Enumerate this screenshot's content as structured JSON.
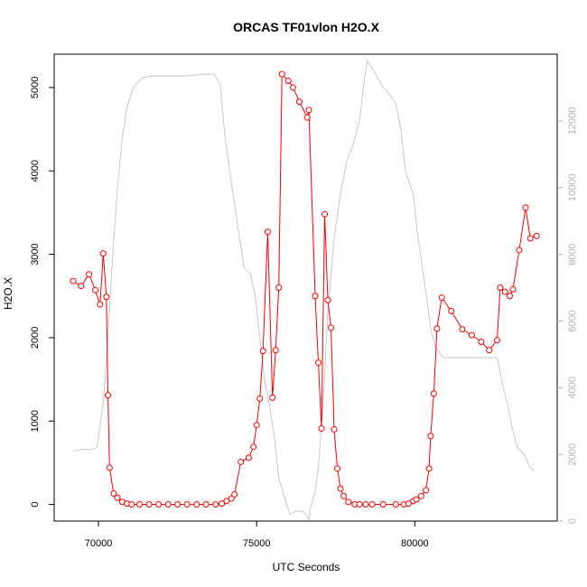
{
  "chart_data": {
    "type": "line",
    "title": "ORCAS TF01vlon H2O.X",
    "xlabel": "UTC Seconds",
    "ylabel": "H2O.X",
    "xlim": [
      68600,
      84500
    ],
    "ylim": [
      -200,
      5400
    ],
    "y2lim": [
      0,
      14000
    ],
    "x_ticks": [
      70000,
      75000,
      80000
    ],
    "y_ticks": [
      0,
      1000,
      2000,
      3000,
      4000,
      5000
    ],
    "y2_ticks": [
      0,
      2000,
      4000,
      6000,
      8000,
      10000,
      12000
    ],
    "grid": false,
    "colors": {
      "h2o": "#ff0000",
      "secondary": "#c8c8c8"
    },
    "series": [
      {
        "axis": "left",
        "marker": "circle",
        "points": [
          [
            69200,
            2680
          ],
          [
            69450,
            2620
          ],
          [
            69700,
            2760
          ],
          [
            69900,
            2570
          ],
          [
            70050,
            2400
          ],
          [
            70150,
            3010
          ],
          [
            70250,
            2490
          ],
          [
            70300,
            1310
          ],
          [
            70350,
            440
          ],
          [
            70480,
            130
          ],
          [
            70600,
            80
          ],
          [
            70750,
            30
          ],
          [
            70900,
            10
          ],
          [
            71050,
            0
          ],
          [
            71300,
            0
          ],
          [
            71600,
            0
          ],
          [
            71900,
            0
          ],
          [
            72200,
            0
          ],
          [
            72500,
            0
          ],
          [
            72800,
            0
          ],
          [
            73100,
            0
          ],
          [
            73400,
            0
          ],
          [
            73700,
            0
          ],
          [
            73900,
            10
          ],
          [
            74050,
            40
          ],
          [
            74200,
            70
          ],
          [
            74300,
            120
          ],
          [
            74500,
            510
          ],
          [
            74750,
            560
          ],
          [
            74900,
            690
          ],
          [
            75000,
            950
          ],
          [
            75100,
            1270
          ],
          [
            75200,
            1840
          ],
          [
            75350,
            3270
          ],
          [
            75500,
            1280
          ],
          [
            75600,
            1850
          ],
          [
            75700,
            2600
          ],
          [
            75800,
            5160
          ],
          [
            76000,
            5080
          ],
          [
            76150,
            5000
          ],
          [
            76350,
            4830
          ],
          [
            76600,
            4640
          ],
          [
            76650,
            4730
          ],
          [
            76850,
            2500
          ],
          [
            76950,
            1700
          ],
          [
            77050,
            910
          ],
          [
            77150,
            3480
          ],
          [
            77250,
            2450
          ],
          [
            77350,
            2120
          ],
          [
            77450,
            900
          ],
          [
            77550,
            430
          ],
          [
            77650,
            190
          ],
          [
            77750,
            100
          ],
          [
            77900,
            30
          ],
          [
            78100,
            0
          ],
          [
            78250,
            0
          ],
          [
            78450,
            0
          ],
          [
            78650,
            0
          ],
          [
            79000,
            0
          ],
          [
            79400,
            0
          ],
          [
            79650,
            0
          ],
          [
            79800,
            10
          ],
          [
            79950,
            40
          ],
          [
            80050,
            60
          ],
          [
            80200,
            100
          ],
          [
            80350,
            170
          ],
          [
            80450,
            430
          ],
          [
            80500,
            820
          ],
          [
            80600,
            1330
          ],
          [
            80700,
            2110
          ],
          [
            80850,
            2480
          ],
          [
            81150,
            2320
          ],
          [
            81500,
            2100
          ],
          [
            81800,
            2030
          ],
          [
            82100,
            1950
          ],
          [
            82350,
            1850
          ],
          [
            82600,
            1970
          ],
          [
            82700,
            2600
          ],
          [
            82850,
            2550
          ],
          [
            83000,
            2500
          ],
          [
            83100,
            2580
          ],
          [
            83300,
            3050
          ],
          [
            83500,
            3560
          ],
          [
            83650,
            3190
          ],
          [
            83850,
            3220
          ]
        ]
      },
      {
        "axis": "right",
        "marker": "none",
        "points": [
          [
            69200,
            2100
          ],
          [
            69500,
            2150
          ],
          [
            69800,
            2150
          ],
          [
            69950,
            2200
          ],
          [
            70150,
            3500
          ],
          [
            70300,
            5500
          ],
          [
            70450,
            8000
          ],
          [
            70600,
            10000
          ],
          [
            70750,
            11500
          ],
          [
            70900,
            12400
          ],
          [
            71100,
            13000
          ],
          [
            71400,
            13300
          ],
          [
            71700,
            13350
          ],
          [
            72300,
            13350
          ],
          [
            72800,
            13350
          ],
          [
            73300,
            13400
          ],
          [
            73650,
            13400
          ],
          [
            73850,
            13100
          ],
          [
            74000,
            11500
          ],
          [
            74300,
            9500
          ],
          [
            74600,
            7600
          ],
          [
            74800,
            7400
          ],
          [
            74950,
            6800
          ],
          [
            75100,
            5500
          ],
          [
            75250,
            4200
          ],
          [
            75400,
            3500
          ],
          [
            75550,
            2600
          ],
          [
            75700,
            1300
          ],
          [
            75900,
            650
          ],
          [
            76050,
            200
          ],
          [
            76250,
            300
          ],
          [
            76450,
            300
          ],
          [
            76550,
            200
          ],
          [
            76650,
            50
          ],
          [
            76700,
            400
          ],
          [
            76850,
            900
          ],
          [
            76950,
            1600
          ],
          [
            77100,
            3500
          ],
          [
            77250,
            6300
          ],
          [
            77450,
            8500
          ],
          [
            77650,
            9800
          ],
          [
            77850,
            10800
          ],
          [
            78050,
            11300
          ],
          [
            78250,
            12000
          ],
          [
            78400,
            13200
          ],
          [
            78500,
            13800
          ],
          [
            78700,
            13500
          ],
          [
            79000,
            13000
          ],
          [
            79200,
            12800
          ],
          [
            79400,
            12500
          ],
          [
            79550,
            11800
          ],
          [
            79700,
            10500
          ],
          [
            79950,
            9800
          ],
          [
            80100,
            8500
          ],
          [
            80300,
            7200
          ],
          [
            80500,
            5800
          ],
          [
            80650,
            5200
          ],
          [
            80900,
            4900
          ],
          [
            81200,
            4900
          ],
          [
            82000,
            4900
          ],
          [
            82600,
            4900
          ],
          [
            82800,
            4000
          ],
          [
            82950,
            3400
          ],
          [
            83100,
            2700
          ],
          [
            83250,
            2200
          ],
          [
            83450,
            2000
          ],
          [
            83650,
            1600
          ],
          [
            83800,
            1500
          ]
        ]
      }
    ]
  }
}
